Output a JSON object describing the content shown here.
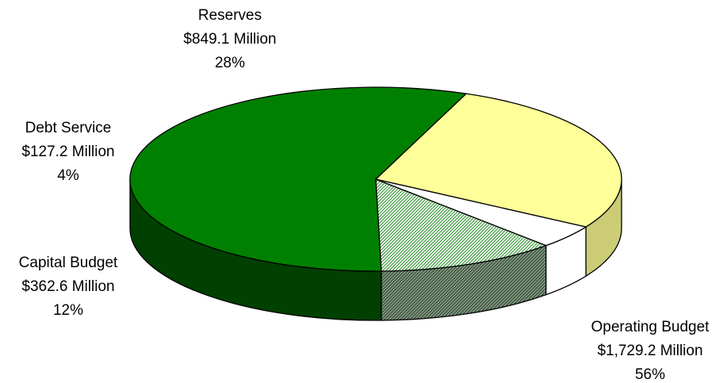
{
  "chart_data": {
    "type": "pie",
    "style": "3d",
    "title": "",
    "slices": [
      {
        "label": "Operating Budget",
        "amount": "$1,729.2 Million",
        "percent": "56%",
        "value": 1729.2,
        "color": "#008000",
        "side_color": "#004000",
        "pattern": "solid"
      },
      {
        "label": "Capital Budget",
        "amount": "$362.6 Million",
        "percent": "12%",
        "value": 362.6,
        "color": "#5aa05a",
        "side_color": "#3d5a3d",
        "pattern": "diagonal-hatch"
      },
      {
        "label": "Debt Service",
        "amount": "$127.2 Million",
        "percent": "4%",
        "value": 127.2,
        "color": "#ffffff",
        "side_color": "#ffffff",
        "pattern": "solid"
      },
      {
        "label": "Reserves",
        "amount": "$849.1 Million",
        "percent": "28%",
        "value": 849.1,
        "color": "#ffff99",
        "side_color": "#cccc77",
        "pattern": "solid"
      }
    ]
  }
}
